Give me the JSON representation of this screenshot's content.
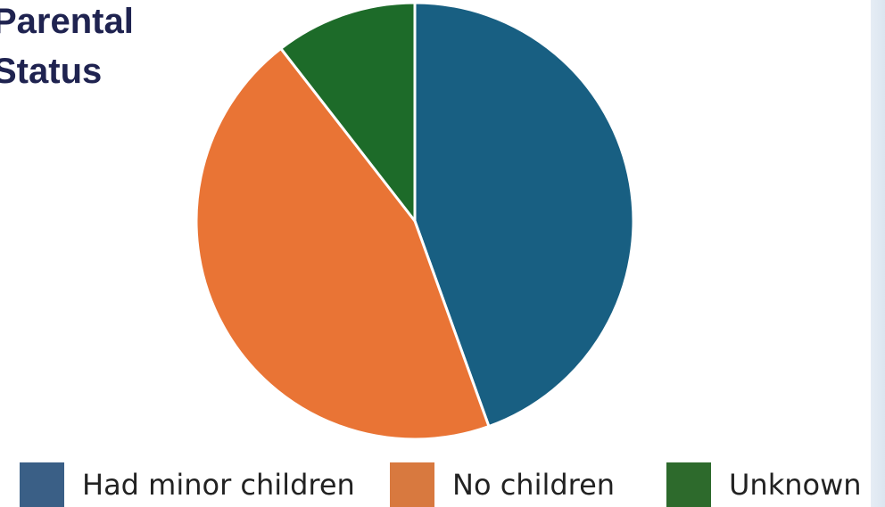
{
  "title_lines": [
    "Parental",
    "Status"
  ],
  "chart_data": {
    "type": "pie",
    "title": "Parental Status",
    "categories": [
      "Had minor children",
      "No children",
      "Unknown"
    ],
    "values": [
      44.5,
      45,
      10.5
    ],
    "colors": [
      "#185f82",
      "#e97435",
      "#1d6b29"
    ],
    "legend_colors": [
      "#3a5f86",
      "#d8793f",
      "#2d6a2c"
    ],
    "start_angle_deg": 0,
    "legend_position": "bottom"
  }
}
